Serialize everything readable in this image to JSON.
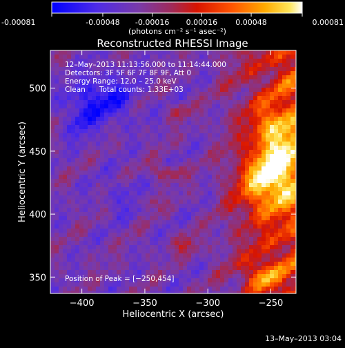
{
  "colorbar": {
    "tick_labels": [
      "-0.00081",
      "-0.00048",
      "-0.00016",
      "0.00016",
      "0.00048",
      "0.00081"
    ],
    "unit_text": "(photons cm⁻² s⁻¹ asec⁻²)",
    "range": [
      -0.00081,
      0.00081
    ],
    "colors": [
      "#0000ff",
      "#5a28d8",
      "#7a3aa8",
      "#b02a4a",
      "#e01000",
      "#ff5a00",
      "#ffa800",
      "#ffe050",
      "#ffffff"
    ]
  },
  "chart_data": {
    "type": "heatmap",
    "title": "Reconstructed RHESSI Image",
    "xlabel": "Heliocentric X (arcsec)",
    "ylabel": "Heliocentric Y (arcsec)",
    "xlim": [
      -425,
      -230
    ],
    "ylim": [
      337,
      530
    ],
    "x_ticks": [
      -400,
      -350,
      -300,
      -250
    ],
    "x_tick_labels": [
      "−400",
      "−350",
      "−300",
      "−250"
    ],
    "y_ticks": [
      350,
      400,
      450,
      500
    ],
    "y_tick_labels": [
      "350",
      "400",
      "450",
      "500"
    ],
    "annotations": [
      "12–May–2013 11:13:56.000 to 11:14:44.000",
      "Detectors: 3F 5F 6F 7F 8F 9F, Att 0",
      "Energy Range: 12.0 – 25.0 keV",
      "Clean      Total counts: 1.33E+03"
    ],
    "peak_label": "Position of Peak = [−250,454]",
    "peak": [
      -250,
      454
    ]
  },
  "footer_timestamp": "13–May–2013 03:04"
}
